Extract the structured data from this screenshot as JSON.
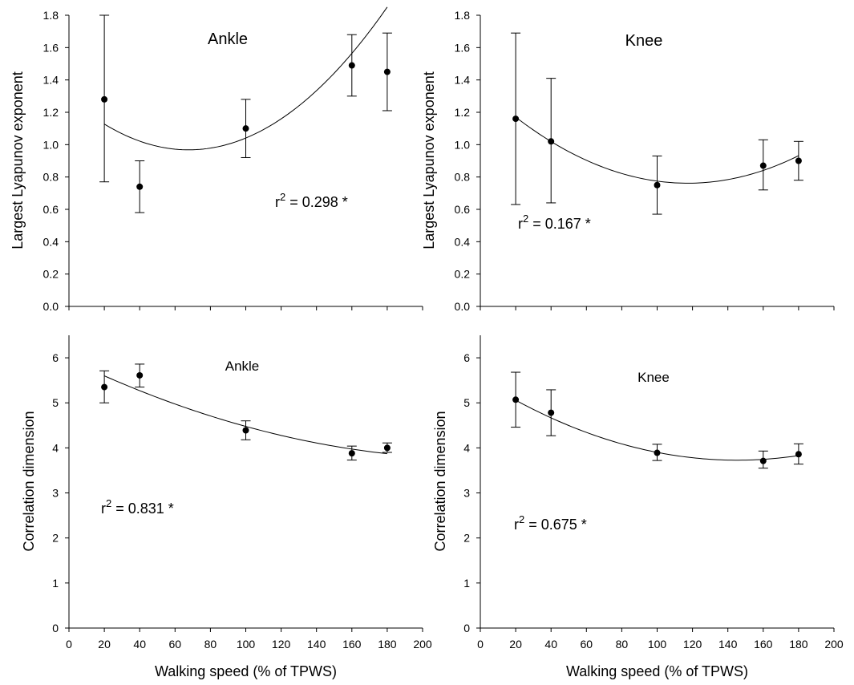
{
  "chart_data": [
    {
      "type": "scatter",
      "title": "Ankle",
      "ylabel": "Largest Lyapunov exponent",
      "xlabel": "",
      "xlim": [
        0,
        200
      ],
      "ylim": [
        0,
        1.8
      ],
      "xticks_shown": false,
      "yticks": [
        "0.0",
        "0.2",
        "0.4",
        "0.6",
        "0.8",
        "1.0",
        "1.2",
        "1.4",
        "1.6",
        "1.8"
      ],
      "x": [
        20,
        40,
        100,
        160,
        180
      ],
      "y": [
        1.28,
        0.74,
        1.1,
        1.49,
        1.45
      ],
      "err_low": [
        0.77,
        0.58,
        0.92,
        1.3,
        1.21
      ],
      "err_high": [
        1.8,
        0.9,
        1.28,
        1.68,
        1.69
      ],
      "fit": {
        "type": "quadratic",
        "a": 7e-05,
        "b": -0.00948,
        "c": 1.2889
      },
      "annotation": {
        "base": "r",
        "sup": "2",
        "rest": " = 0.298 *"
      }
    },
    {
      "type": "scatter",
      "title": "Knee",
      "ylabel": "Largest Lyapunov exponent",
      "xlabel": "",
      "xlim": [
        0,
        200
      ],
      "ylim": [
        0,
        1.8
      ],
      "xticks_shown": false,
      "yticks": [
        "0.0",
        "0.2",
        "0.4",
        "0.6",
        "0.8",
        "1.0",
        "1.2",
        "1.4",
        "1.6",
        "1.8"
      ],
      "x": [
        20,
        40,
        100,
        160,
        180
      ],
      "y": [
        1.16,
        1.02,
        0.75,
        0.87,
        0.9
      ],
      "err_low": [
        0.63,
        0.64,
        0.57,
        0.72,
        0.78
      ],
      "err_high": [
        1.69,
        1.41,
        0.93,
        1.03,
        1.02
      ],
      "fit": {
        "type": "quadratic",
        "a": 4.32e-05,
        "b": -0.01013,
        "c": 1.3555
      },
      "annotation": {
        "base": "r",
        "sup": "2",
        "rest": " = 0.167 *"
      }
    },
    {
      "type": "scatter",
      "title": "Ankle",
      "ylabel": "Correlation dimension",
      "xlabel": "Walking speed (% of TPWS)",
      "xlim": [
        0,
        200
      ],
      "ylim": [
        0,
        6.5
      ],
      "xticks": [
        "0",
        "20",
        "40",
        "60",
        "80",
        "100",
        "120",
        "140",
        "160",
        "180",
        "200"
      ],
      "yticks": [
        "0",
        "1",
        "2",
        "3",
        "4",
        "5",
        "6"
      ],
      "x": [
        20,
        40,
        100,
        160,
        180
      ],
      "y": [
        5.35,
        5.61,
        4.39,
        3.88,
        4.0
      ],
      "err_low": [
        5.0,
        5.35,
        4.18,
        3.73,
        3.9
      ],
      "err_high": [
        5.71,
        5.86,
        4.6,
        4.04,
        4.11
      ],
      "fit": {
        "type": "quadratic",
        "a": 4.03e-05,
        "b": -0.01887,
        "c": 5.9611
      },
      "annotation": {
        "base": "r",
        "sup": "2",
        "rest": " = 0.831 *"
      }
    },
    {
      "type": "scatter",
      "title": "Knee",
      "ylabel": "Correlation dimension",
      "xlabel": "Walking speed (% of TPWS)",
      "xlim": [
        0,
        200
      ],
      "ylim": [
        0,
        6.5
      ],
      "xticks": [
        "0",
        "20",
        "40",
        "60",
        "80",
        "100",
        "120",
        "140",
        "160",
        "180",
        "200"
      ],
      "yticks": [
        "0",
        "1",
        "2",
        "3",
        "4",
        "5",
        "6"
      ],
      "x": [
        20,
        40,
        100,
        160,
        180
      ],
      "y": [
        5.07,
        4.78,
        3.89,
        3.71,
        3.86
      ],
      "err_low": [
        4.46,
        4.27,
        3.72,
        3.55,
        3.64
      ],
      "err_high": [
        5.68,
        5.29,
        4.08,
        3.93,
        4.09
      ],
      "fit": {
        "type": "quadratic",
        "a": 8.49e-05,
        "b": -0.02466,
        "c": 5.5177
      },
      "annotation": {
        "base": "r",
        "sup": "2",
        "rest": " = 0.675 *"
      }
    }
  ]
}
